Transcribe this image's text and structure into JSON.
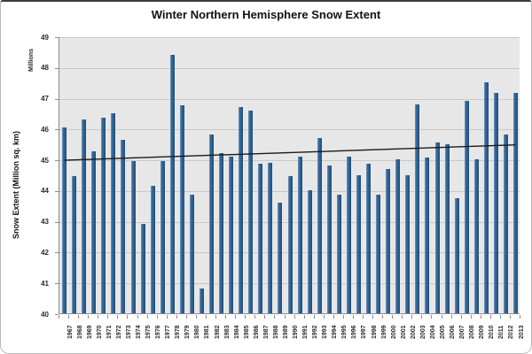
{
  "title": "Winter Northern Hemisphere Snow Extent",
  "y_axis": {
    "unit_label": "Millions",
    "title": "Snow Extent (Million sq. km)"
  },
  "chart_data": {
    "type": "bar",
    "title": "Winter Northern Hemisphere Snow Extent",
    "xlabel": "",
    "ylabel": "Snow Extent (Million sq. km)",
    "y_unit_label": "Millions",
    "ylim": [
      40,
      49
    ],
    "y_ticks": [
      40,
      41,
      42,
      43,
      44,
      45,
      46,
      47,
      48,
      49
    ],
    "grid": true,
    "legend": "none",
    "categories": [
      "1967",
      "1968",
      "1969",
      "1970",
      "1971",
      "1972",
      "1973",
      "1974",
      "1975",
      "1976",
      "1977",
      "1978",
      "1979",
      "1980",
      "1981",
      "1982",
      "1983",
      "1984",
      "1985",
      "1986",
      "1987",
      "1988",
      "1989",
      "1990",
      "1991",
      "1992",
      "1993",
      "1994",
      "1995",
      "1996",
      "1997",
      "1998",
      "1999",
      "2000",
      "2001",
      "2002",
      "2003",
      "2004",
      "2005",
      "2006",
      "2007",
      "2008",
      "2009",
      "2010",
      "2011",
      "2012",
      "2013"
    ],
    "values": [
      46.05,
      44.45,
      46.3,
      45.25,
      46.35,
      46.5,
      45.65,
      44.95,
      42.9,
      44.15,
      44.95,
      48.4,
      46.75,
      43.85,
      40.8,
      45.8,
      45.2,
      45.1,
      46.7,
      46.6,
      44.85,
      44.9,
      43.6,
      44.45,
      45.1,
      44.0,
      45.7,
      44.8,
      43.85,
      45.1,
      44.5,
      44.85,
      43.85,
      44.7,
      45.0,
      44.5,
      46.8,
      45.05,
      45.55,
      45.5,
      43.75,
      46.9,
      45.0,
      47.5,
      47.15,
      45.8,
      47.15
    ],
    "trendline": {
      "type": "linear",
      "y_start": 45.0,
      "y_end": 45.5
    },
    "colors": {
      "bar": "#2E6191",
      "bar_highlight": "#7D9CBE",
      "bar_shadow": "#1E4A73",
      "trend": "#1a1a1a",
      "plot_background": "#E7E7E7",
      "gridline": "#C8C8C8",
      "axis": "#8C8C8C"
    }
  }
}
